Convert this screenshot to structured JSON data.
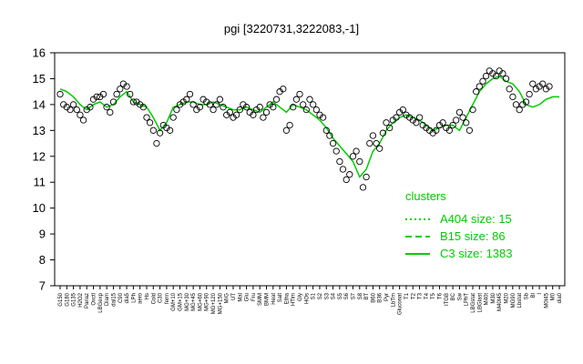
{
  "chart_data": {
    "type": "line",
    "title": "pgi [3220731,3222083,-1]",
    "xlabel": "",
    "ylabel": "",
    "ylim": [
      7,
      16
    ],
    "yticks": [
      7,
      8,
      9,
      10,
      11,
      12,
      13,
      14,
      15,
      16
    ],
    "colors": {
      "series": "#00cc00",
      "points": "#000000",
      "frame": "#000000"
    },
    "grid": false,
    "legend": {
      "placement": "bottom-right",
      "title": "clusters",
      "entries": [
        {
          "label": "A404 size: 15",
          "style": "dotted"
        },
        {
          "label": "B15 size: 86",
          "style": "dashed"
        },
        {
          "label": "C3 size: 1383",
          "style": "solid"
        }
      ]
    },
    "x_tick_labels": [
      "G150",
      "G180",
      "G135",
      "H2O2",
      "Pariaz",
      "Oxctl",
      "LBGexp",
      "Diam",
      "dal15",
      "C90",
      "dia5",
      "LPh",
      "aero",
      "Hs",
      "Cold",
      "C30",
      "ferm",
      "GM+10",
      "GM+15",
      "MG+30",
      "MG+45",
      "MG+60",
      "MG+90",
      "MG+120",
      "MG+150",
      "M/G",
      "UT",
      "Mal",
      "Glu",
      "Fru",
      "SMM",
      "BMM",
      "Heat",
      "Salt",
      "Etha",
      "HTim",
      "Gly",
      "HOs",
      "S1",
      "S2",
      "S3",
      "S4",
      "S5",
      "S6",
      "S7",
      "S8",
      "BT",
      "B60",
      "B36",
      "Pyr",
      "LbTm",
      "Gluconat",
      "T1",
      "T2",
      "T3",
      "T4",
      "T5",
      "T6",
      "ITGB",
      "BC",
      "Sw",
      "LPhT",
      "LBGstat",
      "LBGlast",
      "M40t",
      "M30",
      "M40t45",
      "M20",
      "MG90",
      "Lbstat",
      "Sb",
      "Bl",
      "I",
      "M0t45",
      "M0",
      "dia0"
    ],
    "series_c3_mean": [
      14.6,
      14.5,
      14.3,
      14.0,
      13.8,
      14.0,
      14.1,
      13.9,
      14.0,
      14.3,
      14.5,
      14.1,
      14.0,
      13.9,
      13.5,
      13.0,
      13.3,
      13.9,
      14.0,
      14.1,
      14.1,
      14.0,
      14.0,
      14.1,
      14.0,
      13.9,
      13.8,
      13.8,
      13.9,
      13.8,
      13.7,
      13.9,
      14.1,
      13.9,
      13.7,
      14.0,
      13.9,
      13.8,
      13.6,
      13.4,
      13.1,
      12.7,
      12.4,
      12.1,
      11.8,
      11.2,
      11.5,
      12.2,
      12.5,
      13.0,
      13.3,
      13.5,
      13.6,
      13.5,
      13.4,
      13.2,
      13.0,
      13.1,
      13.2,
      13.2,
      13.0,
      13.5,
      14.0,
      14.5,
      14.8,
      15.0,
      15.1,
      14.9,
      14.8,
      14.5,
      14.0,
      13.9,
      14.0,
      14.2,
      14.3,
      14.3
    ],
    "points": [
      [
        0,
        14.4
      ],
      [
        0.5,
        14.0
      ],
      [
        1,
        13.9
      ],
      [
        1.5,
        13.8
      ],
      [
        2,
        14.0
      ],
      [
        2.5,
        13.8
      ],
      [
        3,
        13.6
      ],
      [
        3.5,
        13.4
      ],
      [
        4,
        13.8
      ],
      [
        4.5,
        13.9
      ],
      [
        5,
        14.2
      ],
      [
        5.5,
        14.3
      ],
      [
        6,
        14.3
      ],
      [
        6.5,
        14.4
      ],
      [
        7,
        13.9
      ],
      [
        7.5,
        13.7
      ],
      [
        8,
        14.1
      ],
      [
        8.5,
        14.4
      ],
      [
        9,
        14.6
      ],
      [
        9.5,
        14.8
      ],
      [
        10,
        14.7
      ],
      [
        10.5,
        14.4
      ],
      [
        11,
        14.1
      ],
      [
        11.5,
        14.1
      ],
      [
        12,
        14.0
      ],
      [
        12.5,
        13.9
      ],
      [
        13,
        13.5
      ],
      [
        13.5,
        13.3
      ],
      [
        14,
        13.0
      ],
      [
        14.5,
        12.5
      ],
      [
        15,
        12.9
      ],
      [
        15.5,
        13.2
      ],
      [
        16,
        13.1
      ],
      [
        16.5,
        13.0
      ],
      [
        17,
        13.5
      ],
      [
        17.5,
        13.8
      ],
      [
        18,
        14.0
      ],
      [
        18.5,
        14.1
      ],
      [
        19,
        14.2
      ],
      [
        19.5,
        14.4
      ],
      [
        20,
        14.0
      ],
      [
        20.5,
        13.8
      ],
      [
        21,
        13.9
      ],
      [
        21.5,
        14.2
      ],
      [
        22,
        14.1
      ],
      [
        22.5,
        14.0
      ],
      [
        23,
        13.8
      ],
      [
        23.5,
        14.0
      ],
      [
        24,
        14.2
      ],
      [
        24.5,
        13.9
      ],
      [
        25,
        13.6
      ],
      [
        25.5,
        13.7
      ],
      [
        26,
        13.5
      ],
      [
        26.5,
        13.6
      ],
      [
        27,
        13.8
      ],
      [
        27.5,
        14.0
      ],
      [
        28,
        13.9
      ],
      [
        28.5,
        13.7
      ],
      [
        29,
        13.6
      ],
      [
        29.5,
        13.8
      ],
      [
        30,
        13.9
      ],
      [
        30.5,
        13.5
      ],
      [
        31,
        13.7
      ],
      [
        31.5,
        14.0
      ],
      [
        32,
        13.9
      ],
      [
        32.5,
        14.2
      ],
      [
        33,
        14.5
      ],
      [
        33.5,
        14.6
      ],
      [
        34,
        13.0
      ],
      [
        34.5,
        13.2
      ],
      [
        35,
        13.9
      ],
      [
        35.5,
        14.2
      ],
      [
        36,
        14.4
      ],
      [
        36.5,
        14.0
      ],
      [
        37,
        13.8
      ],
      [
        37.5,
        14.2
      ],
      [
        38,
        14.0
      ],
      [
        38.5,
        13.8
      ],
      [
        39,
        13.6
      ],
      [
        39.5,
        13.5
      ],
      [
        40,
        13.0
      ],
      [
        40.5,
        12.8
      ],
      [
        41,
        12.5
      ],
      [
        41.5,
        12.2
      ],
      [
        42,
        11.8
      ],
      [
        42.5,
        11.5
      ],
      [
        43,
        11.1
      ],
      [
        43.5,
        11.3
      ],
      [
        44,
        12.0
      ],
      [
        44.5,
        12.2
      ],
      [
        45,
        11.8
      ],
      [
        45.5,
        10.8
      ],
      [
        46,
        11.2
      ],
      [
        46.5,
        12.5
      ],
      [
        47,
        12.8
      ],
      [
        47.5,
        12.5
      ],
      [
        48,
        12.3
      ],
      [
        48.5,
        12.9
      ],
      [
        49,
        13.3
      ],
      [
        49.5,
        13.1
      ],
      [
        50,
        13.4
      ],
      [
        50.5,
        13.5
      ],
      [
        51,
        13.7
      ],
      [
        51.5,
        13.8
      ],
      [
        52,
        13.6
      ],
      [
        52.5,
        13.5
      ],
      [
        53,
        13.4
      ],
      [
        53.5,
        13.3
      ],
      [
        54,
        13.5
      ],
      [
        54.5,
        13.2
      ],
      [
        55,
        13.1
      ],
      [
        55.5,
        13.0
      ],
      [
        56,
        12.9
      ],
      [
        56.5,
        13.0
      ],
      [
        57,
        13.2
      ],
      [
        57.5,
        13.3
      ],
      [
        58,
        13.1
      ],
      [
        58.5,
        13.0
      ],
      [
        59,
        13.2
      ],
      [
        59.5,
        13.4
      ],
      [
        60,
        13.7
      ],
      [
        60.5,
        13.5
      ],
      [
        61,
        13.3
      ],
      [
        61.5,
        13.0
      ],
      [
        62,
        13.8
      ],
      [
        62.5,
        14.5
      ],
      [
        63,
        14.7
      ],
      [
        63.5,
        14.9
      ],
      [
        64,
        15.1
      ],
      [
        64.5,
        15.3
      ],
      [
        65,
        15.2
      ],
      [
        65.5,
        15.1
      ],
      [
        66,
        15.3
      ],
      [
        66.5,
        15.2
      ],
      [
        67,
        15.0
      ],
      [
        67.5,
        14.6
      ],
      [
        68,
        14.3
      ],
      [
        68.5,
        14.0
      ],
      [
        69,
        13.8
      ],
      [
        69.5,
        14.0
      ],
      [
        70,
        14.1
      ],
      [
        70.5,
        14.4
      ],
      [
        71,
        14.8
      ],
      [
        71.5,
        14.6
      ],
      [
        72,
        14.7
      ],
      [
        72.5,
        14.8
      ],
      [
        73,
        14.6
      ],
      [
        73.5,
        14.7
      ]
    ]
  }
}
